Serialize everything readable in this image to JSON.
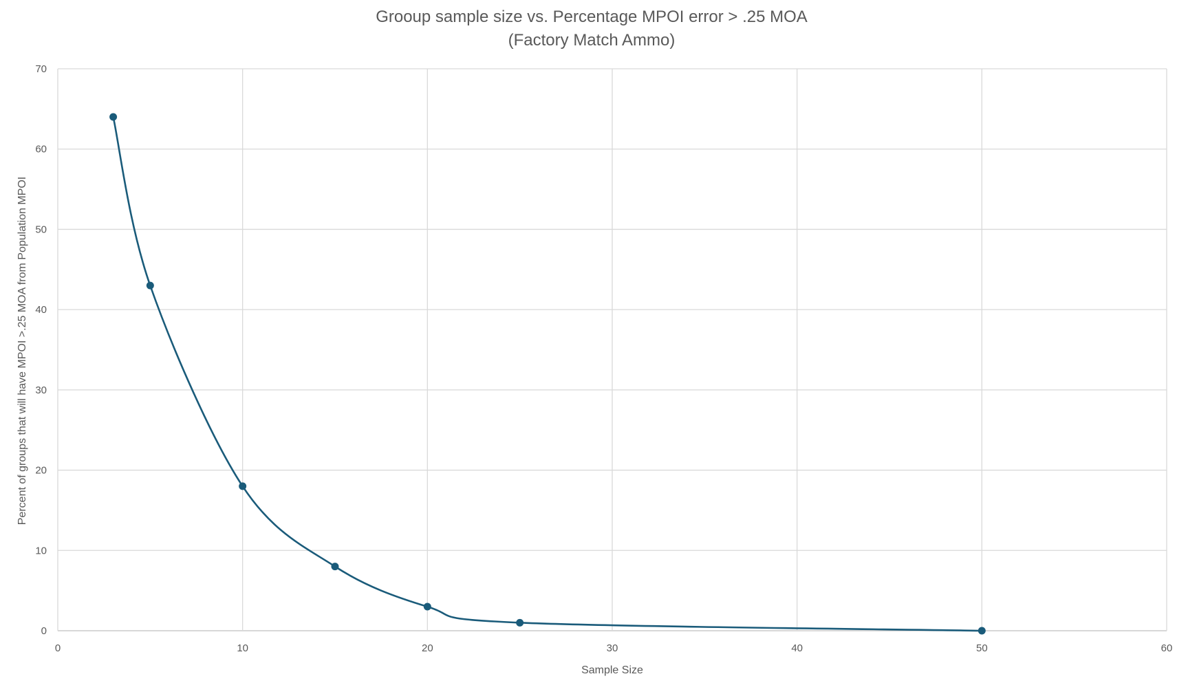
{
  "chart_data": {
    "type": "scatter",
    "title_lines": [
      "Grooup sample size vs. Percentage MPOI error > .25 MOA",
      "(Factory Match Ammo)"
    ],
    "xlabel": "Sample Size",
    "ylabel": "Percent of groups that will have MPOI >.25 MOA from Population MPOI",
    "xlim": [
      0,
      60
    ],
    "ylim": [
      0,
      70
    ],
    "xticks": [
      0,
      10,
      20,
      30,
      40,
      50,
      60
    ],
    "yticks": [
      0,
      10,
      20,
      30,
      40,
      50,
      60,
      70
    ],
    "grid": true,
    "smooth_line": true,
    "markers": true,
    "series": [
      {
        "color": "#1a5b7a",
        "points": [
          {
            "x": 3,
            "y": 64
          },
          {
            "x": 5,
            "y": 43
          },
          {
            "x": 10,
            "y": 18
          },
          {
            "x": 15,
            "y": 8
          },
          {
            "x": 20,
            "y": 3
          },
          {
            "x": 25,
            "y": 1
          },
          {
            "x": 50,
            "y": 0
          }
        ]
      }
    ]
  }
}
